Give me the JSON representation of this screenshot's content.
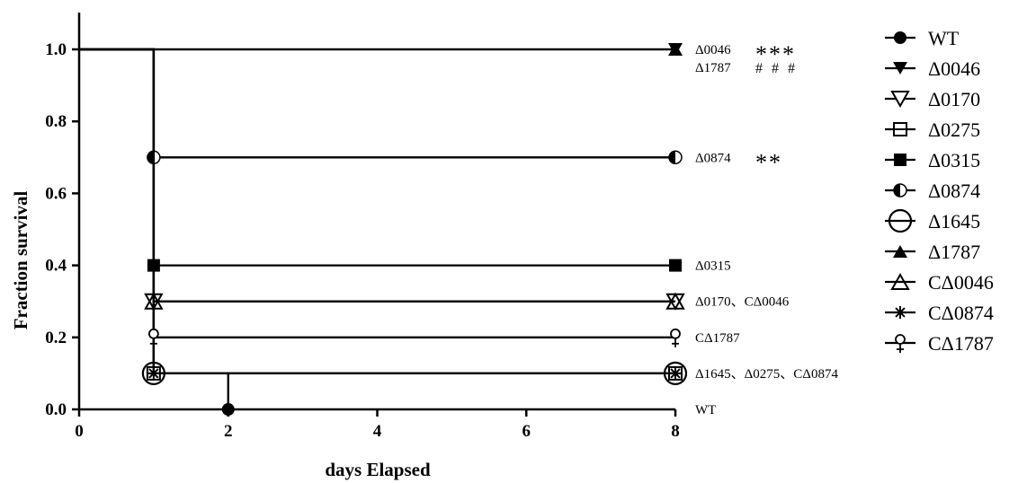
{
  "chart_data": {
    "type": "line",
    "title": "",
    "xlabel": "days Elapsed",
    "ylabel": "Fraction survival",
    "xlim": [
      0,
      8
    ],
    "ylim": [
      0,
      1.0
    ],
    "x_ticks": [
      0,
      2,
      4,
      6,
      8
    ],
    "y_ticks": [
      "0.0",
      "0.2",
      "0.4",
      "0.6",
      "0.8",
      "1.0"
    ],
    "legend_position": "right",
    "grid": false,
    "series": [
      {
        "name": "WT",
        "marker": "filled-circle",
        "points": [
          [
            0,
            1.0
          ],
          [
            1,
            1.0
          ],
          [
            1,
            0.1
          ],
          [
            2,
            0.1
          ],
          [
            2,
            0.0
          ]
        ],
        "marker_points": [
          [
            2,
            0.0
          ]
        ]
      },
      {
        "name": "Δ0046",
        "marker": "filled-triangle-down",
        "points": [
          [
            0,
            1.0
          ],
          [
            8,
            1.0
          ]
        ],
        "marker_points": [
          [
            8,
            1.0
          ]
        ]
      },
      {
        "name": "Δ0170",
        "marker": "open-triangle-down",
        "points": [
          [
            0,
            1.0
          ],
          [
            1,
            1.0
          ],
          [
            1,
            0.3
          ],
          [
            8,
            0.3
          ]
        ],
        "marker_points": [
          [
            1,
            0.3
          ],
          [
            8,
            0.3
          ]
        ]
      },
      {
        "name": "Δ0275",
        "marker": "open-square",
        "points": [
          [
            0,
            1.0
          ],
          [
            1,
            1.0
          ],
          [
            1,
            0.1
          ],
          [
            8,
            0.1
          ]
        ],
        "marker_points": [
          [
            1,
            0.1
          ],
          [
            8,
            0.1
          ]
        ]
      },
      {
        "name": "Δ0315",
        "marker": "filled-square",
        "points": [
          [
            0,
            1.0
          ],
          [
            1,
            1.0
          ],
          [
            1,
            0.4
          ],
          [
            8,
            0.4
          ]
        ],
        "marker_points": [
          [
            1,
            0.4
          ],
          [
            8,
            0.4
          ]
        ]
      },
      {
        "name": "Δ0874",
        "marker": "half-circle",
        "points": [
          [
            0,
            1.0
          ],
          [
            1,
            1.0
          ],
          [
            1,
            0.7
          ],
          [
            8,
            0.7
          ]
        ],
        "marker_points": [
          [
            1,
            0.7
          ],
          [
            8,
            0.7
          ]
        ]
      },
      {
        "name": "Δ1645",
        "marker": "big-open-circle",
        "points": [
          [
            0,
            1.0
          ],
          [
            1,
            1.0
          ],
          [
            1,
            0.1
          ],
          [
            8,
            0.1
          ]
        ],
        "marker_points": [
          [
            1,
            0.1
          ],
          [
            8,
            0.1
          ]
        ]
      },
      {
        "name": "Δ1787",
        "marker": "filled-triangle-up",
        "points": [
          [
            0,
            1.0
          ],
          [
            8,
            1.0
          ]
        ],
        "marker_points": [
          [
            8,
            1.0
          ]
        ]
      },
      {
        "name": "CΔ0046",
        "marker": "open-triangle-up",
        "points": [
          [
            0,
            1.0
          ],
          [
            1,
            1.0
          ],
          [
            1,
            0.3
          ],
          [
            8,
            0.3
          ]
        ],
        "marker_points": [
          [
            1,
            0.3
          ],
          [
            8,
            0.3
          ]
        ]
      },
      {
        "name": "CΔ0874",
        "marker": "asterisk",
        "points": [
          [
            0,
            1.0
          ],
          [
            1,
            1.0
          ],
          [
            1,
            0.1
          ],
          [
            8,
            0.1
          ]
        ],
        "marker_points": [
          [
            1,
            0.1
          ],
          [
            8,
            0.1
          ]
        ]
      },
      {
        "name": "CΔ1787",
        "marker": "venus",
        "points": [
          [
            0,
            1.0
          ],
          [
            1,
            1.0
          ],
          [
            1,
            0.2
          ],
          [
            8,
            0.2
          ]
        ],
        "marker_points": [
          [
            1,
            0.2
          ],
          [
            8,
            0.2
          ]
        ]
      }
    ],
    "annotations": [
      {
        "text": "Δ0046",
        "x": 8,
        "y": 1.0,
        "line": 0
      },
      {
        "text": "Δ1787",
        "x": 8,
        "y": 1.0,
        "line": 1
      },
      {
        "text": "Δ0874",
        "x": 8,
        "y": 0.7,
        "line": 0
      },
      {
        "text": "Δ0315",
        "x": 8,
        "y": 0.4,
        "line": 0
      },
      {
        "text": "Δ0170、CΔ0046",
        "x": 8,
        "y": 0.3,
        "line": 0
      },
      {
        "text": "CΔ1787",
        "x": 8,
        "y": 0.2,
        "line": 0
      },
      {
        "text": "Δ1645、Δ0275、CΔ0874",
        "x": 8,
        "y": 0.1,
        "line": 0
      },
      {
        "text": "WT",
        "x": 8,
        "y": 0.0,
        "line": 0
      }
    ],
    "significance": [
      {
        "text": "***",
        "x": 8,
        "y": 1.0,
        "line": 0,
        "style": "star"
      },
      {
        "text": "# # #",
        "x": 8,
        "y": 1.0,
        "line": 1,
        "style": "hash"
      },
      {
        "text": "**",
        "x": 8,
        "y": 0.7,
        "line": 0,
        "style": "star"
      }
    ]
  }
}
